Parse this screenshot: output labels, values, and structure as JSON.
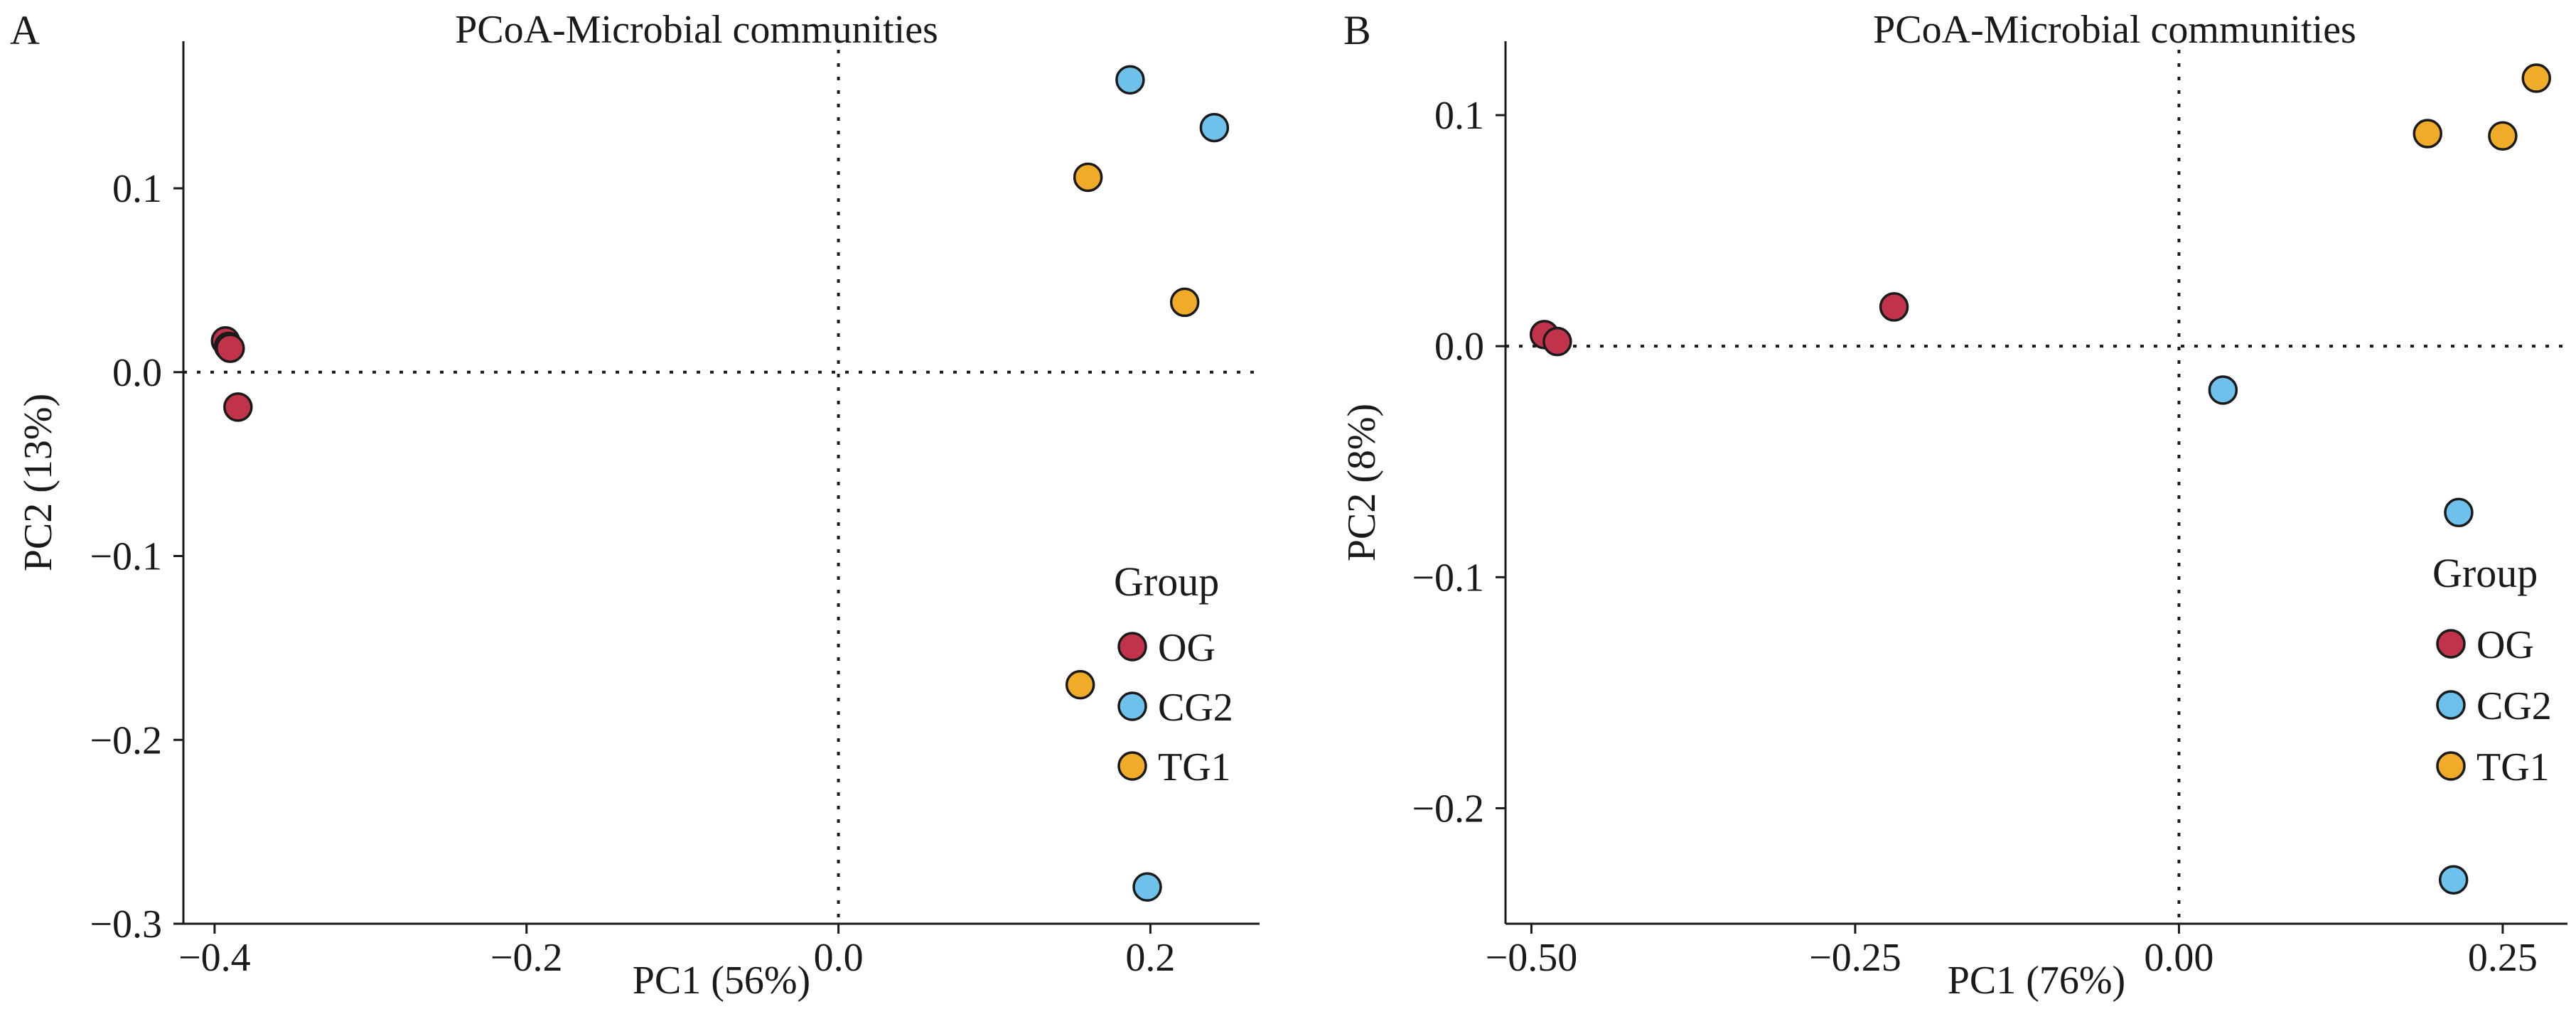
{
  "chart_data": [
    {
      "type": "scatter",
      "panel_label": "A",
      "title": "PCoA-Microbial communities",
      "xlabel": "PC1 (56%)",
      "ylabel": "PC2 (13%)",
      "xlim": [
        -0.42,
        0.27
      ],
      "ylim": [
        -0.3,
        0.18
      ],
      "xticks": [
        -0.4,
        -0.2,
        0.0,
        0.2
      ],
      "xtick_labels": [
        "−0.4",
        "−0.2",
        "0.0",
        "0.2"
      ],
      "yticks": [
        -0.3,
        -0.2,
        -0.1,
        0.0,
        0.1
      ],
      "ytick_labels": [
        "−0.3",
        "−0.2",
        "−0.1",
        "0.0",
        "0.1"
      ],
      "reference_lines": {
        "x": 0,
        "y": 0
      },
      "grid": false,
      "legend": {
        "title": "Group",
        "position": "bottom-right"
      },
      "series": [
        {
          "name": "OG",
          "color": "#c0334a",
          "points": [
            [
              -0.393,
              0.017
            ],
            [
              -0.391,
              0.014
            ],
            [
              -0.39,
              0.013
            ],
            [
              -0.385,
              -0.019
            ]
          ]
        },
        {
          "name": "CG2",
          "color": "#6ec1ea",
          "points": [
            [
              0.187,
              0.159
            ],
            [
              0.241,
              0.133
            ],
            [
              0.198,
              -0.28
            ]
          ]
        },
        {
          "name": "TG1",
          "color": "#f0ac28",
          "points": [
            [
              0.16,
              0.106
            ],
            [
              0.222,
              0.038
            ],
            [
              0.155,
              -0.17
            ]
          ]
        }
      ]
    },
    {
      "type": "scatter",
      "panel_label": "B",
      "title": "PCoA-Microbial communities",
      "xlabel": "PC1 (76%)",
      "ylabel": "PC2 (8%)",
      "xlim": [
        -0.52,
        0.3
      ],
      "ylim": [
        -0.25,
        0.132
      ],
      "xticks": [
        -0.5,
        -0.25,
        0.0,
        0.25
      ],
      "xtick_labels": [
        "−0.50",
        "−0.25",
        "0.00",
        "0.25"
      ],
      "yticks": [
        -0.2,
        -0.1,
        0.0,
        0.1
      ],
      "ytick_labels": [
        "−0.2",
        "−0.1",
        "0.0",
        "0.1"
      ],
      "reference_lines": {
        "x": 0,
        "y": 0
      },
      "grid": false,
      "legend": {
        "title": "Group",
        "position": "bottom-right"
      },
      "series": [
        {
          "name": "OG",
          "color": "#c0334a",
          "points": [
            [
              -0.49,
              0.005
            ],
            [
              -0.48,
              0.002
            ],
            [
              -0.22,
              0.017
            ]
          ]
        },
        {
          "name": "CG2",
          "color": "#6ec1ea",
          "points": [
            [
              0.034,
              -0.019
            ],
            [
              0.216,
              -0.072
            ],
            [
              0.212,
              -0.231
            ]
          ]
        },
        {
          "name": "TG1",
          "color": "#f0ac28",
          "points": [
            [
              0.192,
              0.092
            ],
            [
              0.25,
              0.091
            ],
            [
              0.276,
              0.116
            ]
          ]
        }
      ]
    }
  ]
}
